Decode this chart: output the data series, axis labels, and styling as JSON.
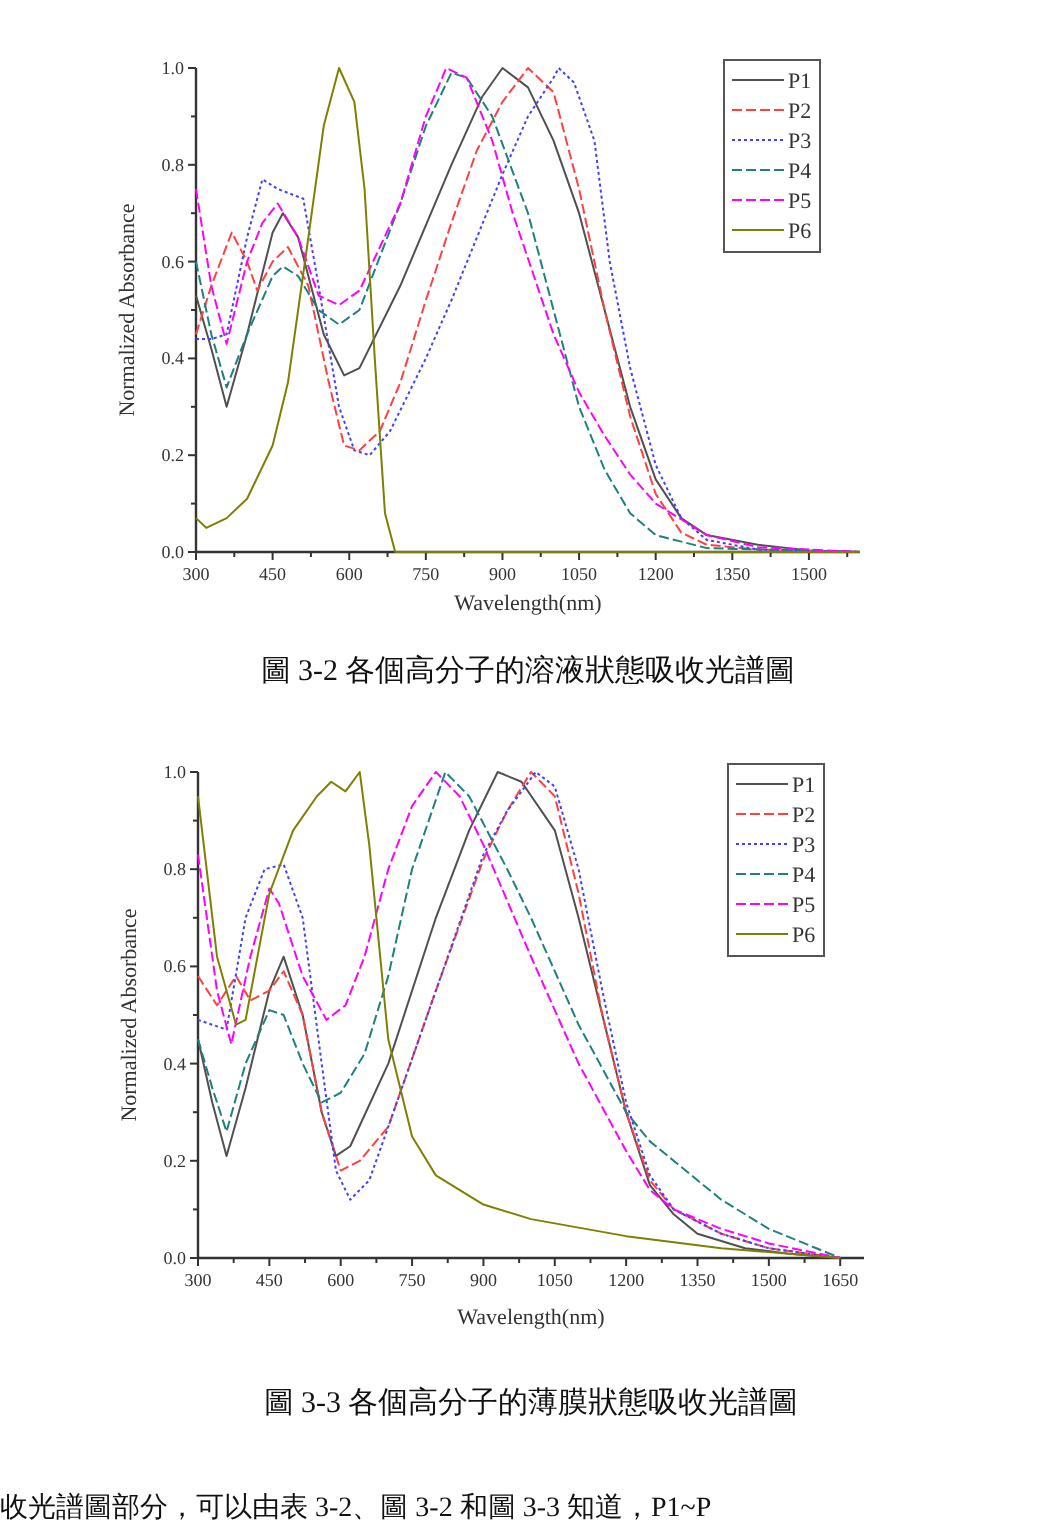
{
  "chart_data": [
    {
      "type": "line",
      "title": "圖 3-2  各個高分子的溶液狀態吸收光譜圖",
      "xlabel": "Wavelength(nm)",
      "ylabel": "Normalized Absorbance",
      "xlim": [
        300,
        1600
      ],
      "ylim": [
        0,
        1.0
      ],
      "xticks": [
        300,
        {
          "value": 375,
          "label": null
        },
        450,
        {
          "value": 525,
          "label": null
        },
        600,
        {
          "value": 675,
          "label": null
        },
        750,
        {
          "value": 825,
          "label": null
        },
        900,
        {
          "value": 975,
          "label": null
        },
        1050,
        {
          "value": 1125,
          "label": null
        },
        1200,
        {
          "value": 1275,
          "label": null
        },
        1350,
        {
          "value": 1425,
          "label": null
        },
        1500,
        {
          "value": 1575,
          "label": null
        }
      ],
      "yticks": [
        {
          "value": 0,
          "label": "0.0"
        },
        {
          "value": 0.1,
          "label": null
        },
        0.2,
        {
          "value": 0.3,
          "label": null
        },
        0.4,
        {
          "value": 0.5,
          "label": null
        },
        0.6,
        {
          "value": 0.7,
          "label": null
        },
        0.8,
        {
          "value": 0.9,
          "label": null
        },
        {
          "value": 1,
          "label": "1.0"
        }
      ],
      "legend": "top right",
      "grid": false,
      "series": [
        {
          "name": "P1",
          "color": "#505050",
          "line_style": "solid",
          "x": [
            300,
            330,
            360,
            400,
            450,
            470,
            500,
            550,
            590,
            620,
            700,
            800,
            860,
            900,
            950,
            1000,
            1050,
            1100,
            1150,
            1200,
            1250,
            1300,
            1400,
            1500,
            1600
          ],
          "values": [
            0.53,
            0.42,
            0.3,
            0.45,
            0.66,
            0.7,
            0.65,
            0.45,
            0.365,
            0.38,
            0.55,
            0.8,
            0.94,
            1.0,
            0.96,
            0.85,
            0.7,
            0.5,
            0.3,
            0.15,
            0.07,
            0.035,
            0.015,
            0.003,
            0
          ]
        },
        {
          "name": "P2",
          "color": "#ff4040",
          "line_style": "dashed",
          "x": [
            300,
            330,
            370,
            400,
            420,
            450,
            480,
            520,
            560,
            590,
            620,
            660,
            700,
            750,
            800,
            850,
            900,
            950,
            1000,
            1050,
            1100,
            1150,
            1200,
            1250,
            1300,
            1400,
            1600
          ],
          "values": [
            0.45,
            0.55,
            0.66,
            0.6,
            0.54,
            0.6,
            0.63,
            0.55,
            0.35,
            0.22,
            0.21,
            0.25,
            0.35,
            0.52,
            0.68,
            0.83,
            0.93,
            1.0,
            0.95,
            0.75,
            0.5,
            0.28,
            0.12,
            0.04,
            0.015,
            0.005,
            0
          ]
        },
        {
          "name": "P3",
          "color": "#4040ff",
          "line_style": "dotted",
          "x": [
            300,
            330,
            360,
            400,
            430,
            460,
            510,
            540,
            580,
            610,
            640,
            680,
            750,
            800,
            850,
            900,
            950,
            1000,
            1010,
            1040,
            1080,
            1110,
            1150,
            1200,
            1250,
            1300,
            1400,
            1600
          ],
          "values": [
            0.44,
            0.44,
            0.45,
            0.65,
            0.77,
            0.75,
            0.73,
            0.55,
            0.3,
            0.21,
            0.2,
            0.25,
            0.4,
            0.52,
            0.65,
            0.78,
            0.9,
            0.98,
            1.0,
            0.97,
            0.85,
            0.6,
            0.38,
            0.18,
            0.07,
            0.025,
            0.005,
            0
          ]
        },
        {
          "name": "P4",
          "color": "#208080",
          "line_style": "dashed",
          "x": [
            300,
            330,
            360,
            400,
            450,
            470,
            500,
            540,
            580,
            620,
            700,
            750,
            800,
            830,
            880,
            950,
            1000,
            1050,
            1100,
            1150,
            1200,
            1300,
            1600
          ],
          "values": [
            0.6,
            0.45,
            0.34,
            0.45,
            0.57,
            0.59,
            0.57,
            0.5,
            0.47,
            0.5,
            0.72,
            0.88,
            0.99,
            0.98,
            0.9,
            0.7,
            0.5,
            0.3,
            0.17,
            0.08,
            0.035,
            0.008,
            0
          ]
        },
        {
          "name": "P5",
          "color": "#ff00ff",
          "line_style": "dashed",
          "x": [
            300,
            330,
            360,
            400,
            430,
            460,
            500,
            540,
            580,
            620,
            700,
            750,
            790,
            830,
            880,
            920,
            1000,
            1050,
            1100,
            1150,
            1200,
            1300,
            1400,
            1600
          ],
          "values": [
            0.75,
            0.55,
            0.43,
            0.6,
            0.68,
            0.72,
            0.65,
            0.53,
            0.51,
            0.54,
            0.72,
            0.9,
            1.0,
            0.98,
            0.85,
            0.7,
            0.45,
            0.33,
            0.24,
            0.16,
            0.1,
            0.035,
            0.01,
            0
          ]
        },
        {
          "name": "P6",
          "color": "#808000",
          "line_style": "solid",
          "x": [
            300,
            320,
            360,
            400,
            450,
            480,
            520,
            550,
            580,
            610,
            630,
            650,
            670,
            690,
            1600
          ],
          "values": [
            0.07,
            0.05,
            0.07,
            0.11,
            0.22,
            0.35,
            0.65,
            0.88,
            1.0,
            0.93,
            0.75,
            0.4,
            0.08,
            0,
            0
          ]
        }
      ]
    },
    {
      "type": "line",
      "title": "圖 3-3  各個高分子的薄膜狀態吸收光譜圖",
      "xlabel": "Wavelength(nm)",
      "ylabel": "Normalized Absorbance",
      "xlim": [
        300,
        1700
      ],
      "ylim": [
        0,
        1.0
      ],
      "xticks": [
        300,
        {
          "value": 375,
          "label": null
        },
        450,
        {
          "value": 525,
          "label": null
        },
        600,
        {
          "value": 675,
          "label": null
        },
        750,
        {
          "value": 825,
          "label": null
        },
        900,
        {
          "value": 975,
          "label": null
        },
        1050,
        {
          "value": 1125,
          "label": null
        },
        1200,
        {
          "value": 1275,
          "label": null
        },
        1350,
        {
          "value": 1425,
          "label": null
        },
        1500,
        {
          "value": 1575,
          "label": null
        },
        1650
      ],
      "yticks": [
        {
          "value": 0,
          "label": "0.0"
        },
        {
          "value": 0.1,
          "label": null
        },
        0.2,
        {
          "value": 0.3,
          "label": null
        },
        0.4,
        {
          "value": 0.5,
          "label": null
        },
        0.6,
        {
          "value": 0.7,
          "label": null
        },
        0.8,
        {
          "value": 0.9,
          "label": null
        },
        {
          "value": 1,
          "label": "1.0"
        }
      ],
      "legend": "top right",
      "grid": false,
      "annotations": [
        "收光譜圖部分，可以由表 3-2、圖 3-2 和圖 3-3 知道，P1~P"
      ],
      "series": [
        {
          "name": "P1",
          "color": "#505050",
          "line_style": "solid",
          "x": [
            300,
            330,
            360,
            400,
            450,
            480,
            520,
            560,
            590,
            620,
            700,
            800,
            870,
            930,
            980,
            1050,
            1100,
            1150,
            1200,
            1250,
            1300,
            1350,
            1450,
            1550,
            1650
          ],
          "values": [
            0.45,
            0.32,
            0.21,
            0.35,
            0.55,
            0.62,
            0.5,
            0.3,
            0.21,
            0.23,
            0.4,
            0.7,
            0.88,
            1.0,
            0.98,
            0.88,
            0.7,
            0.5,
            0.3,
            0.15,
            0.09,
            0.05,
            0.02,
            0.008,
            0
          ]
        },
        {
          "name": "P2",
          "color": "#ff4040",
          "line_style": "dashed",
          "x": [
            300,
            340,
            380,
            410,
            450,
            480,
            520,
            560,
            600,
            640,
            700,
            800,
            900,
            950,
            1000,
            1050,
            1100,
            1150,
            1200,
            1250,
            1300,
            1400,
            1500,
            1650
          ],
          "values": [
            0.58,
            0.52,
            0.58,
            0.53,
            0.55,
            0.59,
            0.5,
            0.3,
            0.18,
            0.2,
            0.27,
            0.55,
            0.82,
            0.92,
            1.0,
            0.95,
            0.75,
            0.5,
            0.3,
            0.16,
            0.1,
            0.05,
            0.02,
            0
          ]
        },
        {
          "name": "P3",
          "color": "#4040ff",
          "line_style": "dotted",
          "x": [
            300,
            360,
            400,
            440,
            480,
            520,
            560,
            590,
            620,
            660,
            700,
            800,
            900,
            950,
            1010,
            1050,
            1100,
            1150,
            1200,
            1250,
            1300,
            1400,
            1500,
            1650
          ],
          "values": [
            0.49,
            0.47,
            0.7,
            0.8,
            0.81,
            0.7,
            0.4,
            0.18,
            0.12,
            0.16,
            0.27,
            0.55,
            0.83,
            0.92,
            1.0,
            0.97,
            0.8,
            0.55,
            0.32,
            0.17,
            0.1,
            0.05,
            0.02,
            0
          ]
        },
        {
          "name": "P4",
          "color": "#208080",
          "line_style": "dashed",
          "x": [
            300,
            330,
            360,
            400,
            450,
            480,
            520,
            560,
            600,
            650,
            700,
            750,
            820,
            870,
            950,
            1000,
            1100,
            1200,
            1250,
            1300,
            1400,
            1500,
            1600,
            1650
          ],
          "values": [
            0.45,
            0.35,
            0.26,
            0.4,
            0.51,
            0.5,
            0.4,
            0.32,
            0.34,
            0.42,
            0.58,
            0.8,
            1.0,
            0.95,
            0.8,
            0.7,
            0.48,
            0.3,
            0.24,
            0.2,
            0.12,
            0.06,
            0.02,
            0
          ]
        },
        {
          "name": "P5",
          "color": "#ff00ff",
          "line_style": "dashed",
          "x": [
            300,
            340,
            370,
            410,
            450,
            470,
            520,
            570,
            610,
            650,
            700,
            750,
            800,
            850,
            900,
            1000,
            1100,
            1200,
            1250,
            1300,
            1400,
            1500,
            1650
          ],
          "values": [
            0.83,
            0.55,
            0.44,
            0.62,
            0.76,
            0.73,
            0.58,
            0.49,
            0.52,
            0.62,
            0.8,
            0.93,
            1.0,
            0.95,
            0.85,
            0.62,
            0.4,
            0.22,
            0.14,
            0.1,
            0.06,
            0.03,
            0
          ]
        },
        {
          "name": "P6",
          "color": "#808000",
          "line_style": "solid",
          "x": [
            300,
            340,
            380,
            400,
            450,
            500,
            550,
            580,
            610,
            640,
            660,
            700,
            750,
            800,
            900,
            1000,
            1200,
            1400,
            1650
          ],
          "values": [
            0.95,
            0.62,
            0.48,
            0.49,
            0.75,
            0.88,
            0.95,
            0.98,
            0.96,
            1.0,
            0.85,
            0.45,
            0.25,
            0.17,
            0.11,
            0.08,
            0.045,
            0.02,
            0
          ]
        }
      ]
    }
  ]
}
